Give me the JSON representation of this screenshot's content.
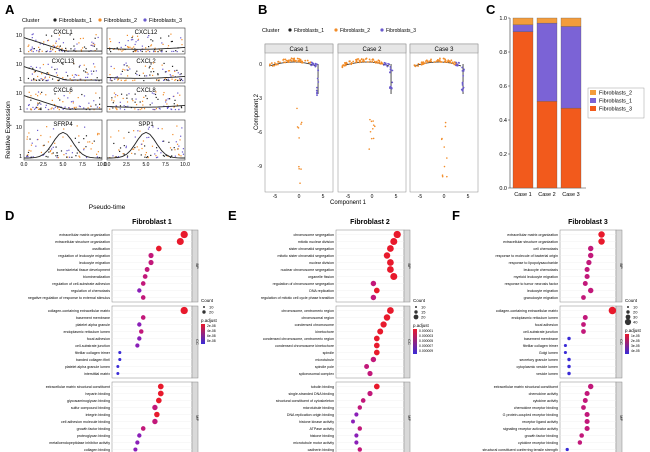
{
  "colors": {
    "fb1": "#222222",
    "fb2": "#f28c28",
    "fb3": "#6a5acd",
    "stack_fb2": "#f39c3c",
    "stack_fb1": "#7b63d6",
    "stack_fb3": "#f25a1c",
    "curve": "#222222",
    "dot_high": "#e8192c",
    "dot_low": "#3a2bd6"
  },
  "panels": {
    "A": "A",
    "B": "B",
    "C": "C",
    "D": "D",
    "E": "E",
    "F": "F"
  },
  "legend_cluster": {
    "title": "Cluster",
    "items": [
      "Fibroblasts_1",
      "Fibroblasts_2",
      "Fibroblasts_3"
    ]
  },
  "panelA": {
    "ylabel": "Relative Expression",
    "xlabel": "Pseudo-time",
    "genes": [
      "CXCL1",
      "CXCL12",
      "CXCL13",
      "CXCL2",
      "CXCL6",
      "CXCL8",
      "SFRP4",
      "SPP1"
    ],
    "yticks": [
      "10",
      "1"
    ],
    "xticks": [
      "0.0",
      "2.5",
      "5.0",
      "7.5",
      "10.0"
    ]
  },
  "panelB": {
    "cases": [
      "Case 1",
      "Case 2",
      "Case 3"
    ],
    "ylabel": "Component 2",
    "xlabel": "Component 1",
    "yticks": [
      "0",
      "-3",
      "-6",
      "-9"
    ],
    "xticks": [
      "-5",
      "0",
      "5"
    ]
  },
  "chart_data": [
    {
      "type": "bar",
      "panel": "C",
      "categories": [
        "Case 1",
        "Case 2",
        "Case 3"
      ],
      "series": [
        {
          "name": "Fibroblasts_3",
          "values": [
            0.92,
            0.51,
            0.47
          ]
        },
        {
          "name": "Fibroblasts_1",
          "values": [
            0.04,
            0.46,
            0.48
          ]
        },
        {
          "name": "Fibroblasts_2",
          "values": [
            0.04,
            0.03,
            0.05
          ]
        }
      ],
      "ylim": [
        0,
        1.0
      ],
      "yticks": [
        "0.0",
        "0.2",
        "0.4",
        "0.6",
        "0.8",
        "1.0"
      ],
      "stacked": true,
      "legend": "right"
    },
    {
      "type": "scatter",
      "panel": "D",
      "title": "Fibroblast 1",
      "xlabel": "GeneRatio",
      "xticks": [
        "0.1",
        "0.2"
      ],
      "groups": [
        {
          "tag": "BP",
          "terms": [
            "extracellular matrix organization",
            "extracellular structure organization",
            "ossification",
            "regulation of leukocyte migration",
            "leukocyte migration",
            "bone/skeletal tissue development",
            "biomineralization",
            "regulation of cell-substrate adhesion",
            "regulation of chemotaxis",
            "negative regulation of response to external stimulus"
          ],
          "ratio": [
            0.225,
            0.215,
            0.16,
            0.14,
            0.14,
            0.13,
            0.125,
            0.12,
            0.11,
            0.12
          ]
        },
        {
          "tag": "CC",
          "terms": [
            "collagen-containing extracellular matrix",
            "basement membrane",
            "platelet alpha granule",
            "endoplasmic reticulum lumen",
            "focal adhesion",
            "cell-substrate junction",
            "fibrillar collagen trimer",
            "banded collagen fibril",
            "platelet alpha granule lumen",
            "interstitial matrix"
          ],
          "ratio": [
            0.225,
            0.12,
            0.11,
            0.115,
            0.11,
            0.105,
            0.06,
            0.06,
            0.055,
            0.055
          ]
        },
        {
          "tag": "MF",
          "terms": [
            "extracellular matrix structural constituent",
            "heparin binding",
            "glycosaminoglycan binding",
            "sulfur compound binding",
            "integrin binding",
            "cell adhesion molecule binding",
            "growth factor binding",
            "proteoglycan binding",
            "metalloendopeptidase inhibitor activity",
            "collagen binding"
          ],
          "ratio": [
            0.165,
            0.165,
            0.16,
            0.15,
            0.155,
            0.15,
            0.12,
            0.11,
            0.105,
            0.1
          ]
        }
      ],
      "legend": {
        "count_title": "Count",
        "count_values": [
          "10",
          "20"
        ],
        "padj_title": "p.adjust",
        "padj_values": [
          "2e-08",
          "4e-08",
          "6e-08",
          "8e-08"
        ]
      }
    },
    {
      "type": "scatter",
      "panel": "E",
      "title": "Fibroblast 2",
      "xlabel": "GeneRatio",
      "xticks": [
        "0.05",
        "0.10"
      ],
      "groups": [
        {
          "tag": "BP",
          "terms": [
            "chromosome segregation",
            "mitotic nuclear division",
            "sister chromatid segregation",
            "mitotic sister chromatid segregation",
            "nuclear division",
            "nuclear chromosome segregation",
            "organelle fission",
            "regulation of chromosome segregation",
            "DNA replication",
            "regulation of mitotic cell cycle phase transition"
          ],
          "ratio": [
            0.12,
            0.115,
            0.11,
            0.105,
            0.11,
            0.11,
            0.115,
            0.085,
            0.09,
            0.085
          ]
        },
        {
          "tag": "CC",
          "terms": [
            "chromosome, centromeric region",
            "chromosomal region",
            "condensed chromosome",
            "kinetochore",
            "condensed chromosome, centromeric region",
            "condensed chromosome kinetochore",
            "spindle",
            "microtubule",
            "spindle pole",
            "spliceosomal complex"
          ],
          "ratio": [
            0.11,
            0.105,
            0.1,
            0.095,
            0.09,
            0.09,
            0.09,
            0.085,
            0.075,
            0.08
          ]
        },
        {
          "tag": "MF",
          "terms": [
            "tubulin binding",
            "single-stranded DNA binding",
            "structural constituent of cytoskeleton",
            "microtubule binding",
            "DNA replication origin binding",
            "histone kinase activity",
            "ATPase activity",
            "histone binding",
            "microtubule motor activity",
            "cadherin binding"
          ],
          "ratio": [
            0.09,
            0.08,
            0.07,
            0.065,
            0.06,
            0.055,
            0.065,
            0.06,
            0.06,
            0.065
          ]
        }
      ],
      "legend": {
        "count_title": "Count",
        "count_values": [
          "10",
          "15",
          "20"
        ],
        "padj_title": "p.adjust",
        "padj_values": [
          "0.000001",
          "0.000003",
          "0.000005",
          "0.000007",
          "0.000009"
        ]
      }
    },
    {
      "type": "scatter",
      "panel": "F",
      "title": "Fibroblast 3",
      "xlabel": "GeneRatio",
      "xticks": [
        "0.05",
        "0.10",
        "0.15"
      ],
      "groups": [
        {
          "tag": "BP",
          "terms": [
            "extracellular matrix organization",
            "extracellular structure organization",
            "cell chemotaxis",
            "response to molecule of bacterial origin",
            "response to lipopolysaccharide",
            "leukocyte chemotaxis",
            "myeloid leukocyte migration",
            "response to tumor necrosis factor",
            "leukocyte migration",
            "granulocyte migration"
          ],
          "ratio": [
            0.14,
            0.14,
            0.11,
            0.11,
            0.105,
            0.1,
            0.1,
            0.095,
            0.11,
            0.09
          ]
        },
        {
          "tag": "CC",
          "terms": [
            "collagen-containing extracellular matrix",
            "endoplasmic reticulum lumen",
            "focal adhesion",
            "cell-substrate junction",
            "basement membrane",
            "fibrillar collagen trimer",
            "Golgi lumen",
            "secretory granule lumen",
            "cytoplasmic vesicle lumen",
            "vesicle lumen"
          ],
          "ratio": [
            0.17,
            0.095,
            0.09,
            0.09,
            0.05,
            0.04,
            0.04,
            0.05,
            0.05,
            0.05
          ]
        },
        {
          "tag": "MF",
          "terms": [
            "extracellular matrix structural constituent",
            "chemokine activity",
            "cytokine activity",
            "chemokine receptor binding",
            "G protein-coupled receptor binding",
            "receptor ligand activity",
            "signaling receptor activator activity",
            "growth factor binding",
            "cytokine receptor binding",
            "structural constituent conferring tensile strength"
          ],
          "ratio": [
            0.11,
            0.1,
            0.095,
            0.09,
            0.1,
            0.1,
            0.1,
            0.085,
            0.08,
            0.045
          ]
        }
      ],
      "legend": {
        "count_title": "Count",
        "count_values": [
          "10",
          "20",
          "30",
          "40"
        ],
        "padj_title": "p.adjust",
        "padj_values": [
          "1e-05",
          "2e-05",
          "3e-05",
          "4e-05"
        ]
      }
    }
  ]
}
